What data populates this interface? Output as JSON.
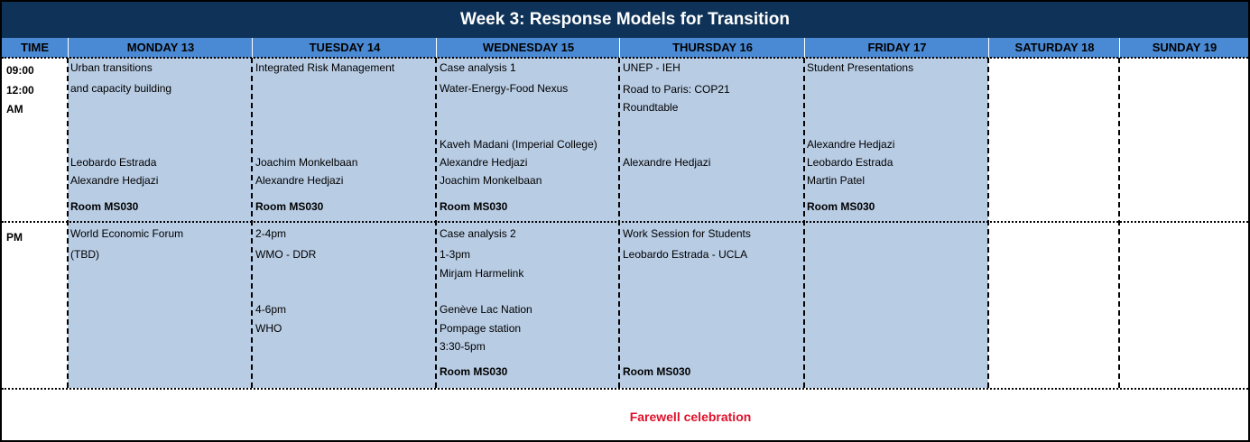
{
  "header": {
    "title": "Week 3: Response Models for Transition"
  },
  "table": {
    "columns": [
      "TIME",
      "MONDAY 13",
      "TUESDAY 14",
      "WEDNESDAY 15",
      "THURSDAY 16",
      "FRIDAY 17",
      "SATURDAY 18",
      "SUNDAY 19"
    ],
    "rows": [
      {
        "time": [
          "09:00",
          "12:00",
          "AM"
        ],
        "cells": [
          [
            "Urban transitions",
            "and capacity building",
            "Leobardo Estrada",
            "Alexandre Hedjazi",
            "Room MS030"
          ],
          [
            "Integrated Risk Management",
            "Joachim Monkelbaan",
            "Alexandre Hedjazi",
            "Room MS030"
          ],
          [
            "Case analysis 1",
            "Water-Energy-Food Nexus",
            "Kaveh Madani (Imperial College)",
            "Alexandre Hedjazi",
            "Joachim Monkelbaan",
            "Room MS030"
          ],
          [
            "UNEP - IEH",
            "Road to Paris: COP21",
            "Roundtable",
            "Alexandre Hedjazi"
          ],
          [
            "Student Presentations",
            "Alexandre Hedjazi",
            "Leobardo Estrada",
            "Martin Patel",
            "Room MS030"
          ]
        ]
      },
      {
        "time": [
          "PM"
        ],
        "cells": [
          [
            "World Economic Forum",
            "(TBD)"
          ],
          [
            "2-4pm",
            "WMO - DDR",
            "4-6pm",
            "WHO"
          ],
          [
            "Case analysis 2",
            "1-3pm",
            "Mirjam Harmelink",
            "Genève Lac Nation",
            "Pompage station",
            "3:30-5pm",
            "Room MS030"
          ],
          [
            "Work Session for Students",
            "Leobardo Estrada - UCLA",
            "Room MS030"
          ]
        ]
      }
    ],
    "footer": "Farewell celebration"
  }
}
